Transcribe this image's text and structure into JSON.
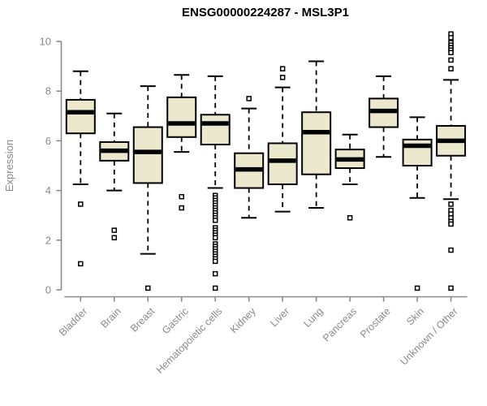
{
  "title": "ENSG00000224287 - MSL3P1",
  "colors": {
    "box_fill": "#ece8cd",
    "box_stroke": "#000000",
    "median": "#000000",
    "outlier_stroke": "#000000",
    "outlier_fill": "#ffffff",
    "axis": "#8a8a8a",
    "tick_label": "#8a8a8a",
    "title": "#000000",
    "background": "#ffffff"
  },
  "chart_data": {
    "type": "boxplot",
    "title": "ENSG00000224287 - MSL3P1",
    "xlabel": "",
    "ylabel": "Expression",
    "ylim": [
      0,
      10
    ],
    "yticks": [
      0,
      2,
      4,
      6,
      8,
      10
    ],
    "grid": false,
    "legend": "none",
    "categories": [
      "Bladder",
      "Brain",
      "Breast",
      "Gastric",
      "Hematopoietic cells",
      "Kidney",
      "Liver",
      "Lung",
      "Pancreas",
      "Prostate",
      "Skin",
      "Unknown / Other"
    ],
    "series": [
      {
        "name": "Bladder",
        "whisker_low": 4.25,
        "q1": 6.3,
        "median": 7.15,
        "q3": 7.65,
        "whisker_high": 8.8,
        "outliers": [
          3.45,
          1.05
        ]
      },
      {
        "name": "Brain",
        "whisker_low": 4.0,
        "q1": 5.2,
        "median": 5.6,
        "q3": 5.95,
        "whisker_high": 7.1,
        "outliers": [
          2.4,
          2.1
        ]
      },
      {
        "name": "Breast",
        "whisker_low": 1.45,
        "q1": 4.3,
        "median": 5.55,
        "q3": 6.55,
        "whisker_high": 8.2,
        "outliers": [
          0.07
        ]
      },
      {
        "name": "Gastric",
        "whisker_low": 5.55,
        "q1": 6.15,
        "median": 6.7,
        "q3": 7.75,
        "whisker_high": 8.65,
        "outliers": [
          3.75,
          3.3
        ]
      },
      {
        "name": "Hematopoietic cells",
        "whisker_low": 4.1,
        "q1": 5.85,
        "median": 6.7,
        "q3": 7.05,
        "whisker_high": 8.6,
        "outliers": [
          3.8,
          3.7,
          3.6,
          3.5,
          3.4,
          3.3,
          3.2,
          3.1,
          3.0,
          2.9,
          2.8,
          2.5,
          2.4,
          2.3,
          2.2,
          2.1,
          1.85,
          1.75,
          1.65,
          1.55,
          1.45,
          1.35,
          1.25,
          1.15,
          0.65,
          0.07
        ]
      },
      {
        "name": "Kidney",
        "whisker_low": 2.9,
        "q1": 4.1,
        "median": 4.85,
        "q3": 5.5,
        "whisker_high": 7.3,
        "outliers": [
          7.7
        ]
      },
      {
        "name": "Liver",
        "whisker_low": 3.15,
        "q1": 4.25,
        "median": 5.2,
        "q3": 5.9,
        "whisker_high": 8.15,
        "outliers": [
          8.9,
          8.55
        ]
      },
      {
        "name": "Lung",
        "whisker_low": 3.3,
        "q1": 4.65,
        "median": 6.35,
        "q3": 7.15,
        "whisker_high": 9.2,
        "outliers": []
      },
      {
        "name": "Pancreas",
        "whisker_low": 4.25,
        "q1": 4.9,
        "median": 5.25,
        "q3": 5.65,
        "whisker_high": 6.25,
        "outliers": [
          2.9
        ]
      },
      {
        "name": "Prostate",
        "whisker_low": 5.35,
        "q1": 6.55,
        "median": 7.2,
        "q3": 7.7,
        "whisker_high": 8.6,
        "outliers": []
      },
      {
        "name": "Skin",
        "whisker_low": 3.7,
        "q1": 5.0,
        "median": 5.8,
        "q3": 6.05,
        "whisker_high": 6.95,
        "outliers": [
          0.07
        ]
      },
      {
        "name": "Unknown / Other",
        "whisker_low": 3.65,
        "q1": 5.4,
        "median": 6.0,
        "q3": 6.6,
        "whisker_high": 8.45,
        "outliers": [
          10.3,
          10.15,
          9.95,
          9.85,
          9.75,
          9.65,
          9.55,
          9.25,
          8.9,
          3.45,
          3.2,
          3.05,
          2.9,
          2.75,
          2.65,
          1.6,
          0.07
        ]
      }
    ]
  }
}
